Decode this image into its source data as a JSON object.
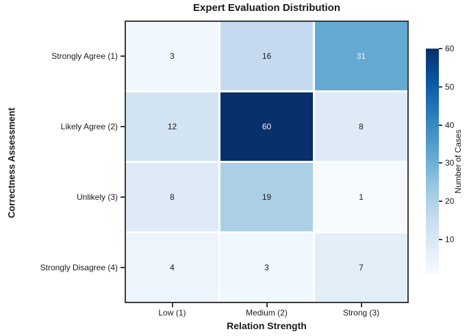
{
  "chart_data": {
    "type": "heatmap",
    "title": "Expert Evaluation Distribution",
    "xlabel": "Relation Strength",
    "ylabel": "Correctness Assessment",
    "x_categories": [
      "Low (1)",
      "Medium (2)",
      "Strong (3)"
    ],
    "y_categories": [
      "Strongly Agree (1)",
      "Likely Agree (2)",
      "Unlikely (3)",
      "Strongly Disagree (4)"
    ],
    "values": [
      [
        3,
        16,
        31
      ],
      [
        12,
        60,
        8
      ],
      [
        8,
        19,
        1
      ],
      [
        4,
        3,
        7
      ]
    ],
    "cell_colors": [
      [
        "#f0f7fd",
        "#c5daee",
        "#64a9d1"
      ],
      [
        "#d2e3f3",
        "#08306b",
        "#deebf7"
      ],
      [
        "#deebf7",
        "#abd0e6",
        "#f7fbff"
      ],
      [
        "#edf5fc",
        "#f0f7fd",
        "#e2eef8"
      ]
    ],
    "text_colors": [
      [
        "#1a1a1a",
        "#1a1a1a",
        "#f7f7f7"
      ],
      [
        "#1a1a1a",
        "#f7f7f7",
        "#1a1a1a"
      ],
      [
        "#1a1a1a",
        "#1a1a1a",
        "#1a1a1a"
      ],
      [
        "#1a1a1a",
        "#1a1a1a",
        "#1a1a1a"
      ]
    ],
    "colorbar": {
      "label": "Number of Cases",
      "ticks": [
        10,
        20,
        30,
        40,
        50,
        60
      ],
      "min": 1,
      "max": 60,
      "gradient_top_to_bottom": [
        "#08306b",
        "#08519c",
        "#2171b5",
        "#4292c6",
        "#6baed6",
        "#9ecae1",
        "#c6dbef",
        "#deebf7",
        "#f7fbff"
      ]
    },
    "layout": {
      "legend_position": "right-colorbar",
      "grid": "off",
      "spine_color": "#3a3a3a",
      "background": "#ffffff"
    }
  }
}
